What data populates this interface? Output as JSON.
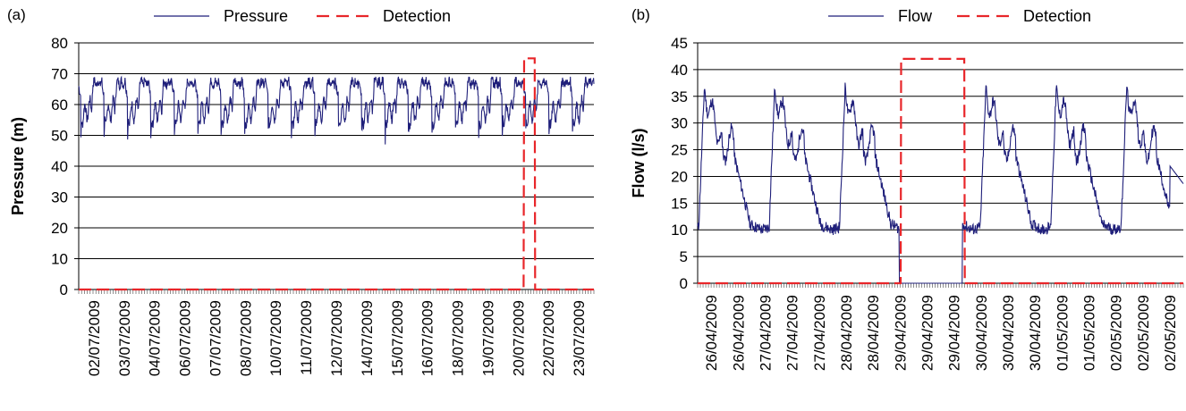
{
  "chart_data": [
    {
      "type": "line",
      "panel_label": "(a)",
      "ylabel": "Pressure (m)",
      "ylim": [
        0,
        80
      ],
      "yticks": [
        0,
        10,
        20,
        30,
        40,
        50,
        60,
        70,
        80
      ],
      "grid": true,
      "legend_position": "top",
      "x_tick_labels": [
        "02/07/2009",
        "03/07/2009",
        "04/07/2009",
        "06/07/2009",
        "07/07/2009",
        "08/07/2009",
        "10/07/2009",
        "11/07/2009",
        "12/07/2009",
        "14/07/2009",
        "15/07/2009",
        "16/07/2009",
        "18/07/2009",
        "19/07/2009",
        "20/07/2009",
        "22/07/2009",
        "23/07/2009"
      ],
      "series": [
        {
          "name": "Pressure",
          "color": "#1f1f7a",
          "style": "solid",
          "description_values": {
            "daily_cycles": 22,
            "day_high": 68,
            "day_low_range": [
              47,
              53
            ],
            "typical": 60
          }
        },
        {
          "name": "Detection",
          "color": "#e8262a",
          "style": "dashed",
          "values_x_fraction": [
            0.0,
            0.8635,
            0.8645,
            0.885,
            0.886,
            1.0
          ],
          "values": [
            0,
            0,
            75,
            75,
            0,
            0
          ]
        }
      ]
    },
    {
      "type": "line",
      "panel_label": "(b)",
      "ylabel": "Flow (l/s)",
      "ylim": [
        0,
        45
      ],
      "yticks": [
        0,
        5,
        10,
        15,
        20,
        25,
        30,
        35,
        40,
        45
      ],
      "grid": true,
      "legend_position": "top",
      "x_tick_labels": [
        "26/04/2009",
        "26/04/2009",
        "27/04/2009",
        "27/04/2009",
        "27/04/2009",
        "28/04/2009",
        "28/04/2009",
        "29/04/2009",
        "29/04/2009",
        "29/04/2009",
        "30/04/2009",
        "30/04/2009",
        "30/04/2009",
        "01/05/2009",
        "01/05/2009",
        "02/05/2009",
        "02/05/2009",
        "02/05/2009"
      ],
      "series": [
        {
          "name": "Flow",
          "color": "#1f1f7a",
          "style": "solid",
          "description_values": {
            "daily_cycles": 7,
            "peak_max": 42,
            "night_min": 9,
            "zero_gap_fraction": [
              0.415,
              0.545
            ]
          }
        },
        {
          "name": "Detection",
          "color": "#e8262a",
          "style": "dashed",
          "values_x_fraction": [
            0.0,
            0.418,
            0.419,
            0.549,
            0.55,
            1.0
          ],
          "values": [
            0,
            0,
            42,
            42,
            0,
            0
          ]
        }
      ]
    }
  ]
}
